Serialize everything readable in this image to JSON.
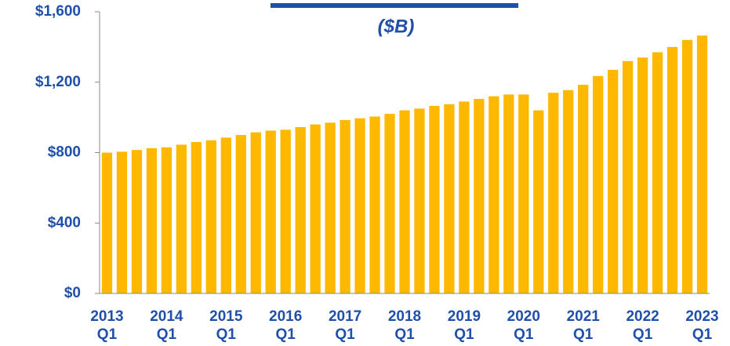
{
  "chart_data": {
    "type": "bar",
    "subtitle": "($B)",
    "categories": [
      "2013\nQ1",
      null,
      null,
      null,
      "2014\nQ1",
      null,
      null,
      null,
      "2015\nQ1",
      null,
      null,
      null,
      "2016\nQ1",
      null,
      null,
      null,
      "2017\nQ1",
      null,
      null,
      null,
      "2018\nQ1",
      null,
      null,
      null,
      "2019\nQ1",
      null,
      null,
      null,
      "2020\nQ1",
      null,
      null,
      null,
      "2021\nQ1",
      null,
      null,
      null,
      "2022\nQ1",
      null,
      null,
      null,
      "2023\nQ1"
    ],
    "values": [
      800,
      805,
      815,
      825,
      830,
      845,
      860,
      870,
      885,
      900,
      915,
      925,
      930,
      945,
      960,
      970,
      985,
      995,
      1005,
      1020,
      1040,
      1050,
      1065,
      1075,
      1090,
      1105,
      1120,
      1130,
      1130,
      1040,
      1140,
      1155,
      1185,
      1235,
      1270,
      1320,
      1340,
      1370,
      1400,
      1440,
      1465
    ],
    "color": "#ffb800",
    "ylim": [
      0,
      1600
    ],
    "yticks": [
      {
        "value": 0,
        "label": "$0"
      },
      {
        "value": 400,
        "label": "$400"
      },
      {
        "value": 800,
        "label": "$800"
      },
      {
        "value": 1200,
        "label": "$1,200"
      },
      {
        "value": 1600,
        "label": "$1,600"
      }
    ],
    "grid": false
  }
}
